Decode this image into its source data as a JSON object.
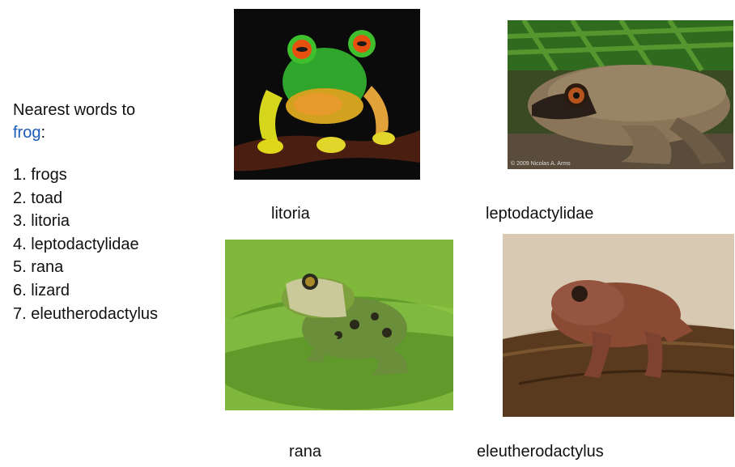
{
  "heading": {
    "prefix": "Nearest words to",
    "keyword": "frog",
    "suffix": ":"
  },
  "neighbors": [
    "1. frogs",
    "2. toad",
    "3. litoria",
    "4. leptodactylidae",
    "5. rana",
    "6. lizard",
    "7. eleutherodactylus"
  ],
  "images": [
    {
      "caption": "litoria"
    },
    {
      "caption": "leptodactylidae",
      "credit": "© 2009 Nicolas A. Arms"
    },
    {
      "caption": "rana"
    },
    {
      "caption": "eleutherodactylus"
    }
  ]
}
